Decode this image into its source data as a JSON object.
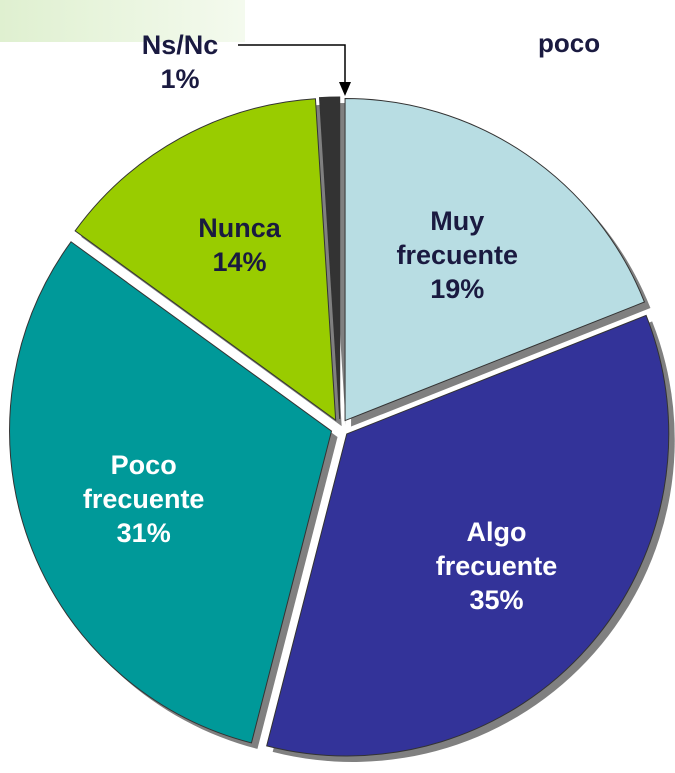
{
  "chart_data": {
    "type": "pie",
    "title": "poco",
    "categories": [
      "Muy frecuente",
      "Algo frecuente",
      "Poco frecuente",
      "Nunca",
      "Ns/Nc"
    ],
    "values": [
      19,
      35,
      31,
      14,
      1
    ],
    "value_labels": [
      "19%",
      "35%",
      "31%",
      "14%",
      "1%"
    ],
    "colors": [
      "#b8dde3",
      "#333399",
      "#009999",
      "#99cc00",
      "#333333"
    ]
  }
}
